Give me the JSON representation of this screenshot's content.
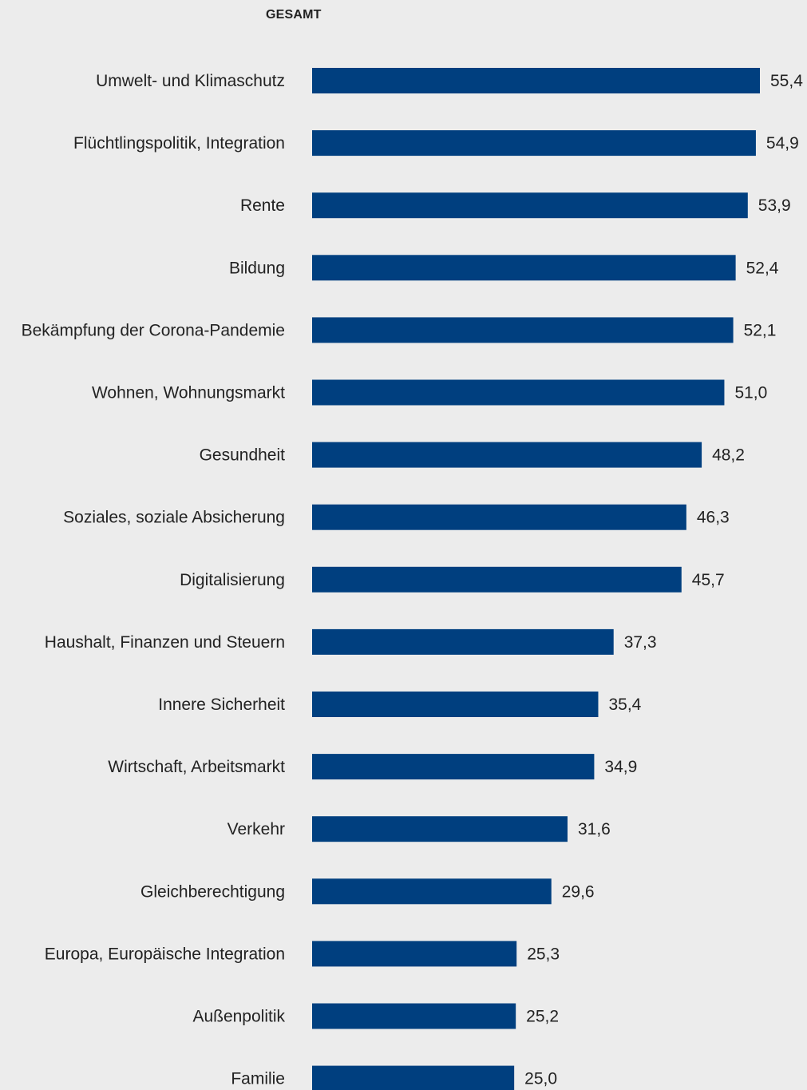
{
  "chart_data": {
    "type": "bar",
    "orientation": "horizontal",
    "title": "GESAMT",
    "categories": [
      "Umwelt- und Klimaschutz",
      "Flüchtlingspolitik, Integration",
      "Rente",
      "Bildung",
      "Bekämpfung der Corona-Pandemie",
      "Wohnen, Wohnungsmarkt",
      "Gesundheit",
      "Soziales, soziale Absicherung",
      "Digitalisierung",
      "Haushalt, Finanzen und Steuern",
      "Innere Sicherheit",
      "Wirtschaft, Arbeitsmarkt",
      "Verkehr",
      "Gleichberechtigung",
      "Europa, Europäische Integration",
      "Außenpolitik",
      "Familie"
    ],
    "values": [
      55.4,
      54.9,
      53.9,
      52.4,
      52.1,
      51.0,
      48.2,
      46.3,
      45.7,
      37.3,
      35.4,
      34.9,
      31.6,
      29.6,
      25.3,
      25.2,
      25.0
    ],
    "value_labels": [
      "55,4",
      "54,9",
      "53,9",
      "52,4",
      "52,1",
      "51,0",
      "48,2",
      "46,3",
      "45,7",
      "37,3",
      "35,4",
      "34,9",
      "31,6",
      "29,6",
      "25,3",
      "25,2",
      "25,0"
    ],
    "xlabel": "",
    "ylabel": "",
    "grid": false,
    "legend": "none",
    "bar_color": "#003f7f",
    "background_color": "#ececec"
  }
}
